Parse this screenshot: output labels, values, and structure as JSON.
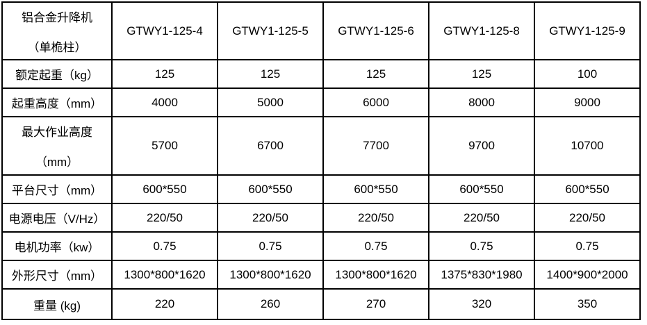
{
  "table": {
    "product_title_line1": "铝合金升降机",
    "product_title_line2": "（单桅柱）",
    "models": [
      "GTWY1-125-4",
      "GTWY1-125-5",
      "GTWY1-125-6",
      "GTWY1-125-8",
      "GTWY1-125-9"
    ],
    "rows": [
      {
        "label": "额定起重（kg）",
        "values": [
          "125",
          "125",
          "125",
          "125",
          "100"
        ]
      },
      {
        "label": "起重高度（mm）",
        "values": [
          "4000",
          "5000",
          "6000",
          "8000",
          "9000"
        ]
      },
      {
        "label_line1": "最大作业高度",
        "label_line2": "（mm）",
        "values": [
          "5700",
          "6700",
          "7700",
          "9700",
          "10700"
        ]
      },
      {
        "label": "平台尺寸（mm）",
        "values": [
          "600*550",
          "600*550",
          "600*550",
          "600*550",
          "600*550"
        ]
      },
      {
        "label": "电源电压（V/Hz）",
        "values": [
          "220/50",
          "220/50",
          "220/50",
          "220/50",
          "220/50"
        ]
      },
      {
        "label": "电机功率（kw）",
        "values": [
          "0.75",
          "0.75",
          "0.75",
          "0.75",
          "0.75"
        ]
      },
      {
        "label": "外形尺寸（mm）",
        "values": [
          "1300*800*1620",
          "1300*800*1620",
          "1300*800*1620",
          "1375*830*1980",
          "1400*900*2000"
        ]
      },
      {
        "label": "重量 (kg)",
        "values": [
          "220",
          "260",
          "270",
          "320",
          "350"
        ]
      }
    ]
  },
  "colors": {
    "border": "#000000",
    "text": "#000000",
    "background": "#ffffff"
  }
}
